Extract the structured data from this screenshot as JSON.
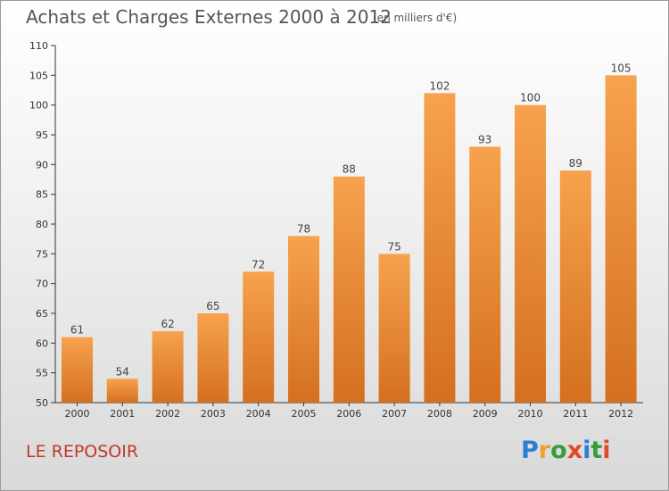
{
  "header": {
    "title": "Achats et Charges Externes 2000 à 2012",
    "unit": "(en milliers d'€)"
  },
  "commune": "LE REPOSOIR",
  "logo": {
    "text": "Proxiti",
    "letter_colors": [
      "#2a7fd4",
      "#e8a23a",
      "#3a9b3a",
      "#e14b2a",
      "#2a7fd4",
      "#3a9b3a",
      "#e14b2a"
    ]
  },
  "colors": {
    "bar_top": "#f7a24e",
    "bar_bottom": "#d4701f",
    "commune_text": "#c0392b"
  },
  "chart_data": {
    "type": "bar",
    "title": "Achats et Charges Externes 2000 à 2012",
    "subtitle": "(en milliers d'€)",
    "xlabel": "",
    "ylabel": "",
    "categories": [
      "2000",
      "2001",
      "2002",
      "2003",
      "2004",
      "2005",
      "2006",
      "2007",
      "2008",
      "2009",
      "2010",
      "2011",
      "2012"
    ],
    "values": [
      61,
      54,
      62,
      65,
      72,
      78,
      88,
      75,
      102,
      93,
      100,
      89,
      105
    ],
    "ylim": [
      50,
      110
    ],
    "yticks": [
      50,
      55,
      60,
      65,
      70,
      75,
      80,
      85,
      90,
      95,
      100,
      105,
      110
    ],
    "grid": false,
    "data_labels": true
  }
}
